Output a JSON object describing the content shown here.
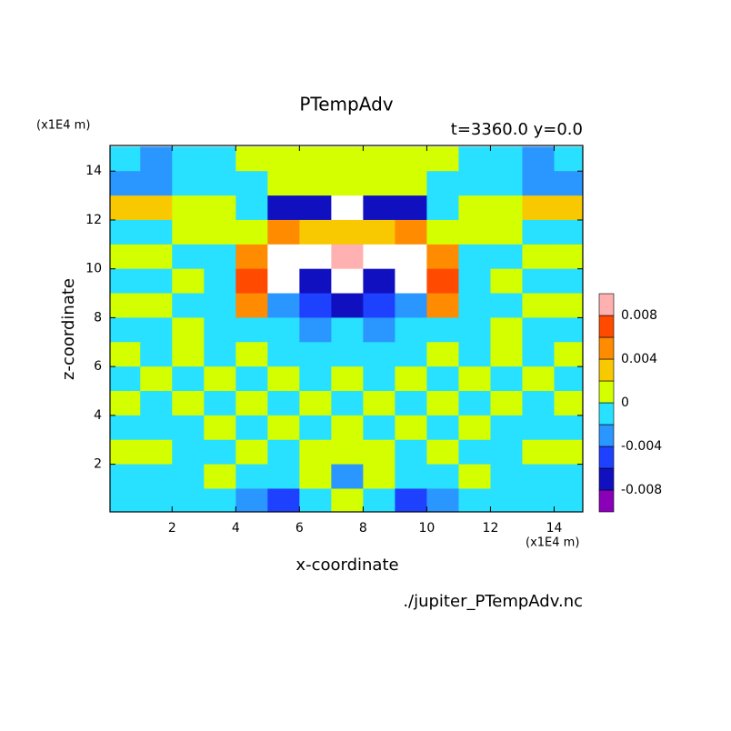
{
  "chart_data": {
    "type": "contour",
    "title": "PTempAdv",
    "subtitle": "t=3360.0 y=0.0",
    "x_label": "x-coordinate",
    "y_label": "z-coordinate",
    "x_unit": "(x1E4 m)",
    "y_unit": "(x1E4 m)",
    "source": "./jupiter_PTempAdv.nc",
    "xlim": [
      0.05,
      14.9
    ],
    "ylim": [
      0.05,
      15.05
    ],
    "xticks": [
      2,
      4,
      6,
      8,
      10,
      12,
      14
    ],
    "yticks": [
      2,
      4,
      6,
      8,
      10,
      12,
      14
    ],
    "x": [
      0.5,
      1.5,
      2.5,
      3.5,
      4.5,
      5.5,
      6.5,
      7.5,
      8.5,
      9.5,
      10.5,
      11.5,
      12.5,
      13.5,
      14.5
    ],
    "y": [
      14.5,
      13.5,
      12.5,
      11.5,
      10.5,
      9.5,
      8.5,
      7.5,
      6.5,
      5.5,
      4.5,
      3.5,
      2.5,
      1.5,
      0.5
    ],
    "z": [
      [
        -0.001,
        -0.003,
        -0.001,
        -0.001,
        0.001,
        0.001,
        0.001,
        0.001,
        0.001,
        0.001,
        0.001,
        -0.001,
        -0.001,
        -0.003,
        -0.001
      ],
      [
        -0.003,
        -0.003,
        -0.001,
        -0.001,
        -0.001,
        0.001,
        0.001,
        0.001,
        0.001,
        0.001,
        -0.001,
        -0.001,
        -0.001,
        -0.003,
        -0.003
      ],
      [
        0.003,
        0.003,
        0.001,
        0.001,
        -0.001,
        -0.007,
        -0.007,
        0.012,
        -0.007,
        -0.007,
        -0.001,
        0.001,
        0.001,
        0.003,
        0.003
      ],
      [
        -0.001,
        -0.001,
        0.001,
        0.001,
        0.001,
        0.005,
        0.003,
        0.003,
        0.003,
        0.005,
        0.001,
        0.001,
        0.001,
        -0.001,
        -0.001
      ],
      [
        0.001,
        0.001,
        -0.001,
        -0.001,
        0.005,
        0.012,
        0.012,
        0.009,
        0.012,
        0.012,
        0.005,
        -0.001,
        -0.001,
        0.001,
        0.001
      ],
      [
        -0.001,
        -0.001,
        0.001,
        -0.001,
        0.007,
        0.012,
        -0.007,
        0.012,
        -0.007,
        0.012,
        0.007,
        -0.001,
        0.001,
        -0.001,
        -0.001
      ],
      [
        0.001,
        0.001,
        -0.001,
        -0.001,
        0.005,
        -0.003,
        -0.005,
        -0.007,
        -0.005,
        -0.003,
        0.005,
        -0.001,
        -0.001,
        0.001,
        0.001
      ],
      [
        -0.001,
        -0.001,
        0.001,
        -0.001,
        -0.001,
        -0.001,
        -0.003,
        -0.001,
        -0.003,
        -0.001,
        -0.001,
        -0.001,
        0.001,
        -0.001,
        -0.001
      ],
      [
        0.001,
        -0.001,
        0.001,
        -0.001,
        0.001,
        -0.001,
        -0.001,
        -0.001,
        -0.001,
        -0.001,
        0.001,
        -0.001,
        0.001,
        -0.001,
        0.001
      ],
      [
        -0.001,
        0.001,
        -0.001,
        0.001,
        -0.001,
        0.001,
        -0.001,
        0.001,
        -0.001,
        0.001,
        -0.001,
        0.001,
        -0.001,
        0.001,
        -0.001
      ],
      [
        0.001,
        -0.001,
        0.001,
        -0.001,
        0.001,
        -0.001,
        0.001,
        -0.001,
        0.001,
        -0.001,
        0.001,
        -0.001,
        0.001,
        -0.001,
        0.001
      ],
      [
        -0.001,
        -0.001,
        -0.001,
        0.001,
        -0.001,
        0.001,
        -0.001,
        0.001,
        -0.001,
        0.001,
        -0.001,
        0.001,
        -0.001,
        -0.001,
        -0.001
      ],
      [
        0.001,
        0.001,
        -0.001,
        -0.001,
        0.001,
        -0.001,
        0.001,
        0.001,
        0.001,
        -0.001,
        0.001,
        -0.001,
        -0.001,
        0.001,
        0.001
      ],
      [
        -0.001,
        -0.001,
        -0.001,
        0.001,
        -0.001,
        -0.001,
        0.001,
        -0.003,
        0.001,
        -0.001,
        -0.001,
        0.001,
        -0.001,
        -0.001,
        -0.001
      ],
      [
        -0.001,
        -0.001,
        -0.001,
        -0.001,
        -0.003,
        -0.005,
        -0.001,
        0.001,
        -0.001,
        -0.005,
        -0.003,
        -0.001,
        -0.001,
        -0.001,
        -0.001
      ]
    ],
    "levels": [
      -0.01,
      -0.008,
      -0.006,
      -0.004,
      -0.002,
      0,
      0.002,
      0.004,
      0.006,
      0.008,
      0.01
    ],
    "colors": [
      "#8a00b8",
      "#1010c0",
      "#1e40ff",
      "#2a96ff",
      "#28e0ff",
      "#d4ff00",
      "#f8c800",
      "#ff8c00",
      "#ff4a00",
      "#ff1e1e"
    ],
    "above_color": "#ffffff",
    "top_color": "#ffb0b0",
    "cbar_ticks": [
      -0.008,
      -0.004,
      0,
      0.004,
      0.008
    ]
  }
}
